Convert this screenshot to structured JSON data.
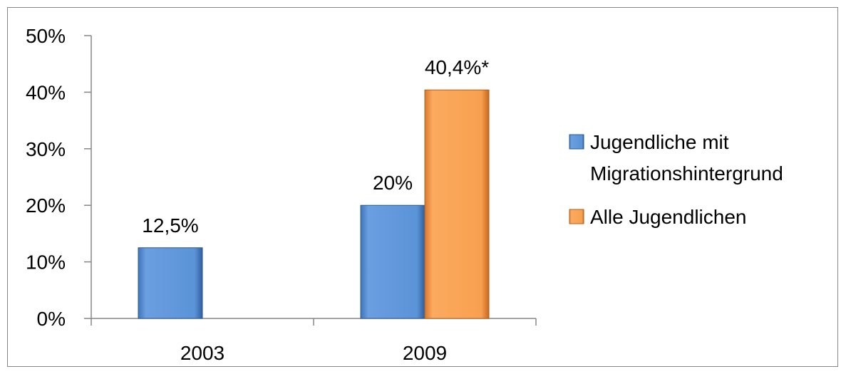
{
  "chart_data": {
    "type": "bar",
    "categories": [
      "2003",
      "2009"
    ],
    "series": [
      {
        "name": "Jugendliche mit Migrationshintergrund",
        "legend_lines": [
          "Jugendliche mit",
          "Migrationshintergrund"
        ],
        "color": "#558ED5",
        "values": [
          12.5,
          20
        ],
        "labels": [
          "12,5%",
          "20%"
        ]
      },
      {
        "name": "Alle Jugendlichen",
        "legend_lines": [
          "Alle Jugendlichen"
        ],
        "color": "#F79646",
        "values": [
          null,
          40.4
        ],
        "labels": [
          "",
          "40,4%*"
        ]
      }
    ],
    "ylim": [
      0,
      50
    ],
    "yticks": [
      0,
      10,
      20,
      30,
      40,
      50
    ],
    "ytick_labels": [
      "0%",
      "10%",
      "20%",
      "30%",
      "40%",
      "50%"
    ],
    "legend_position": "right",
    "grid": false
  }
}
